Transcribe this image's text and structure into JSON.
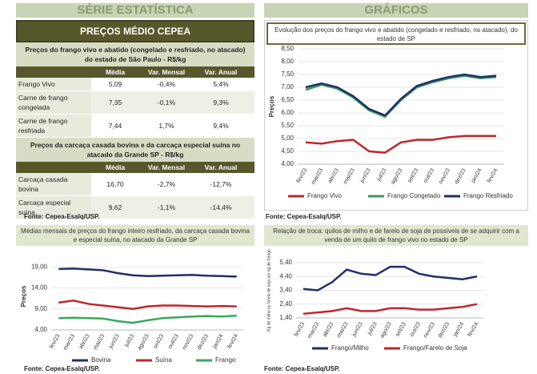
{
  "left_header": "SÉRIE ESTATÍSTICA",
  "right_header": "GRÁFICOS",
  "table": {
    "title": "PREÇOS MÉDIO CEPEA",
    "sections": [
      {
        "title": "Preços do frango vivo e abatido (congelado e resfriado, no atacado) do estado de São Paulo -  R$/kg",
        "columns": [
          "Média",
          "Var. Mensal",
          "Var. Anual"
        ],
        "rows": [
          [
            "Frango Vivo",
            "5,09",
            "-0,4%",
            "5,4%"
          ],
          [
            "Carne de frango congelada",
            "7,35",
            "-0,1%",
            "9,3%"
          ],
          [
            "Carne de frango resfriada",
            "7,44",
            "1,7%",
            "9,4%"
          ]
        ]
      },
      {
        "title": "Preços da carcaça casada bovina e da carcaça especial suína no atacado da Grande SP - R$/kg",
        "columns": [
          "Média",
          "Var. Mensal",
          "Var. Anual"
        ],
        "rows": [
          [
            "Carcaça casada bovina",
            "16,70",
            "-2,7%",
            "-12,7%"
          ],
          [
            "Carcaça especial suína",
            "9,62",
            "-1,1%",
            "-14,4%"
          ]
        ]
      }
    ],
    "source": "Fonte: Cepea-Esalq/USP."
  },
  "chart_data": [
    {
      "type": "line",
      "title": "Evolução dos preços do frango vivo e abatido (congelado e resfriado, no atacado), do estado de SP",
      "ylabel": "Preços",
      "categories": [
        "fev/23",
        "mar/23",
        "abr/23",
        "mai/23",
        "jun/23",
        "jul/23",
        "ago/23",
        "set/23",
        "out/23",
        "nov/23",
        "dez/23",
        "jan/24",
        "fev/24"
      ],
      "series": [
        {
          "name": "Frango Vivo",
          "color": "#c0262c",
          "values": [
            4.85,
            4.8,
            4.9,
            4.95,
            4.5,
            4.45,
            4.85,
            4.95,
            4.95,
            5.05,
            5.1,
            5.1,
            5.1
          ]
        },
        {
          "name": "Frango Congelado",
          "color": "#3a9a5a",
          "values": [
            6.9,
            7.1,
            6.95,
            6.6,
            6.1,
            5.85,
            6.5,
            7.0,
            7.2,
            7.35,
            7.45,
            7.35,
            7.4
          ]
        },
        {
          "name": "Frango Resfriado",
          "color": "#1f2f6b",
          "values": [
            7.0,
            7.15,
            7.0,
            6.65,
            6.15,
            5.9,
            6.55,
            7.05,
            7.25,
            7.4,
            7.5,
            7.4,
            7.45
          ]
        }
      ],
      "ylim": [
        4,
        8.5
      ],
      "yticks": [
        {
          "value": 4,
          "label": "4,00"
        },
        {
          "value": 4.5,
          "label": "4,50"
        },
        {
          "value": 5,
          "label": "5,00"
        },
        {
          "value": 5.5,
          "label": "5,50"
        },
        {
          "value": 6,
          "label": "6,00"
        },
        {
          "value": 6.5,
          "label": "6,50"
        },
        {
          "value": 7,
          "label": "7,00"
        },
        {
          "value": 7.5,
          "label": "7,50"
        },
        {
          "value": 8,
          "label": "8,00"
        },
        {
          "value": 8.5,
          "label": "8,50"
        }
      ],
      "source": "Fonte: Cepea-Esalq/USP."
    },
    {
      "type": "line",
      "title": "Médias mensais de preços do frango inteiro resfriado, da carcaça casada bovina e especial suína, no atacado da Grande SP",
      "ylabel": "Preços",
      "categories": [
        "fev/23",
        "mar/23",
        "abr/23",
        "mai/23",
        "jun/23",
        "jul/23",
        "ago/23",
        "set/23",
        "out/23",
        "nov/23",
        "dez/23",
        "jan/24",
        "fev/24"
      ],
      "series": [
        {
          "name": "Bovina",
          "color": "#1f2f6b",
          "values": [
            18.5,
            18.6,
            18.4,
            18.2,
            17.5,
            17.0,
            16.8,
            16.9,
            17.0,
            17.1,
            16.9,
            16.8,
            16.7
          ]
        },
        {
          "name": "Suína",
          "color": "#c0262c",
          "values": [
            10.5,
            11.0,
            10.2,
            9.8,
            9.4,
            9.0,
            9.6,
            9.8,
            9.8,
            9.7,
            9.6,
            9.7,
            9.6
          ]
        },
        {
          "name": "Frango",
          "color": "#36a85a",
          "values": [
            6.8,
            6.9,
            6.8,
            6.7,
            6.1,
            5.7,
            6.3,
            6.8,
            7.0,
            7.2,
            7.3,
            7.2,
            7.4
          ]
        }
      ],
      "ylim": [
        4,
        20
      ],
      "yticks": [
        {
          "value": 4,
          "label": "4,00"
        },
        {
          "value": 9,
          "label": "9,00"
        },
        {
          "value": 14,
          "label": "14,00"
        },
        {
          "value": 19,
          "label": "19,00"
        }
      ],
      "source": "Fonte: Cepea-Esalq/USP."
    },
    {
      "type": "line",
      "title": "Relação de troca: quilos de milho e de farelo de soja de possíveis de se adquirir com a venda de um quilo de frango vivo no estado de SP",
      "ylabel": "Kg de milho ou farelo de soja por kg de frango",
      "categories": [
        "fev/23",
        "mar/23",
        "abr/23",
        "mai/23",
        "jun/23",
        "jul/23",
        "ago/23",
        "set/23",
        "out/23",
        "nov/23",
        "dez/23",
        "jan/24",
        "fev/24"
      ],
      "series": [
        {
          "name": "Frango/Milho",
          "color": "#1f2f6b",
          "values": [
            3.5,
            3.4,
            4.0,
            4.9,
            4.6,
            4.5,
            5.1,
            5.1,
            4.6,
            4.4,
            4.3,
            4.2,
            4.4
          ]
        },
        {
          "name": "Frango/Farelo de Soja",
          "color": "#c0262c",
          "values": [
            1.7,
            1.8,
            1.9,
            2.1,
            1.9,
            1.9,
            2.1,
            2.1,
            2.0,
            2.0,
            2.1,
            2.2,
            2.4
          ]
        }
      ],
      "ylim": [
        1.4,
        5.4
      ],
      "yticks": [
        {
          "value": 1.4,
          "label": "1,40"
        },
        {
          "value": 2.4,
          "label": "2,40"
        },
        {
          "value": 3.4,
          "label": "3,40"
        },
        {
          "value": 4.4,
          "label": "4,40"
        },
        {
          "value": 5.4,
          "label": "5,40"
        }
      ],
      "source": "Fonte: Cepea-Esalq/USP."
    }
  ]
}
